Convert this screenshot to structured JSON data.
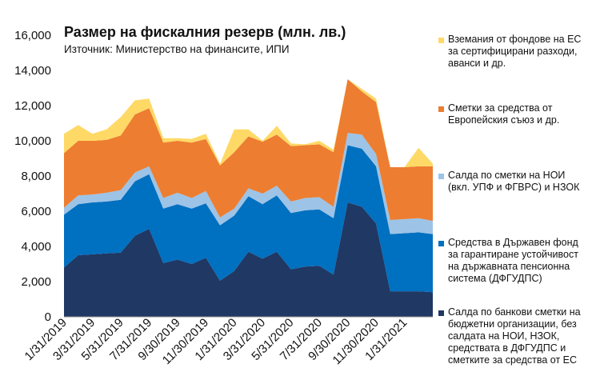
{
  "chart_data": {
    "type": "area",
    "stacked": true,
    "title": "Размер на фискалния резерв (млн. лв.)",
    "subtitle": "Източник: Министерство на финансите, ИПИ",
    "ylim": [
      0,
      16000
    ],
    "yticks": [
      0,
      2000,
      4000,
      6000,
      8000,
      10000,
      12000,
      14000,
      16000
    ],
    "ytick_labels": [
      "0",
      "2,000",
      "4,000",
      "6,000",
      "8,000",
      "10,000",
      "12,000",
      "14,000",
      "16,000"
    ],
    "x": [
      "1/31/2019",
      "2/28/2019",
      "3/31/2019",
      "4/30/2019",
      "5/31/2019",
      "6/30/2019",
      "7/31/2019",
      "8/31/2019",
      "9/30/2019",
      "10/31/2019",
      "11/30/2019",
      "12/31/2019",
      "1/31/2020",
      "2/29/2020",
      "3/31/2020",
      "4/30/2020",
      "5/31/2020",
      "6/30/2020",
      "7/31/2020",
      "8/31/2020",
      "9/30/2020",
      "10/31/2020",
      "11/30/2020",
      "12/31/2020",
      "1/31/2021",
      "2/28/2021",
      "3/31/2021"
    ],
    "xtick_labels": [
      "1/31/2019",
      "3/31/2019",
      "5/31/2019",
      "7/31/2019",
      "9/30/2019",
      "11/30/2019",
      "1/31/2020",
      "3/31/2020",
      "5/31/2020",
      "7/31/2020",
      "9/30/2020",
      "11/30/2020",
      "1/31/2021"
    ],
    "series": [
      {
        "name": "Салда по банкови сметки на бюджетни организации, без салдата на НОИ, НЗОК, средствата в ДФГУДПС и сметките за средства от ЕС",
        "color": "#1f3864",
        "values": [
          2800,
          3500,
          3550,
          3600,
          3650,
          4600,
          5000,
          3050,
          3250,
          3000,
          3350,
          2050,
          2600,
          3700,
          3300,
          3700,
          2700,
          2850,
          2900,
          2400,
          6500,
          6250,
          5300,
          1450,
          1450,
          1450,
          1400
        ]
      },
      {
        "name": "Средства в Държавен фонд за гарантиране устойчивост на държавната пенсионна система (ДФГУДПС)",
        "color": "#0070c0",
        "values": [
          3000,
          2900,
          2950,
          2950,
          3000,
          3100,
          3100,
          3100,
          3150,
          3150,
          3100,
          3150,
          3150,
          3150,
          3100,
          3200,
          3200,
          3200,
          3200,
          3200,
          3250,
          3300,
          3250,
          3250,
          3300,
          3350,
          3300
        ]
      },
      {
        "name": "Салда по сметки на НОИ (вкл. УПФ и ФГВРС) и НЗОК",
        "color": "#9dc3e6",
        "values": [
          400,
          500,
          450,
          500,
          550,
          500,
          450,
          600,
          650,
          600,
          700,
          450,
          400,
          450,
          600,
          550,
          650,
          700,
          700,
          650,
          700,
          800,
          700,
          800,
          800,
          800,
          750
        ]
      },
      {
        "name": "Сметки за средства от Европейския съюз и др.",
        "color": "#ed7d31",
        "values": [
          3100,
          3100,
          3050,
          3000,
          3100,
          3300,
          3300,
          3150,
          2950,
          3150,
          2950,
          2950,
          3200,
          2950,
          2950,
          2900,
          3150,
          3000,
          3000,
          3100,
          3050,
          2450,
          2950,
          3000,
          2950,
          2950,
          3100
        ]
      },
      {
        "name": "Вземания от фондове на ЕС за сертифицирани разходи, аванси и др.",
        "color": "#ffd966",
        "values": [
          1100,
          900,
          400,
          600,
          1050,
          800,
          550,
          250,
          150,
          200,
          300,
          100,
          1300,
          400,
          50,
          500,
          150,
          50,
          200,
          150,
          0,
          150,
          200,
          0,
          0,
          1050,
          150
        ]
      }
    ]
  },
  "legend_order": [
    4,
    3,
    2,
    1,
    0
  ]
}
